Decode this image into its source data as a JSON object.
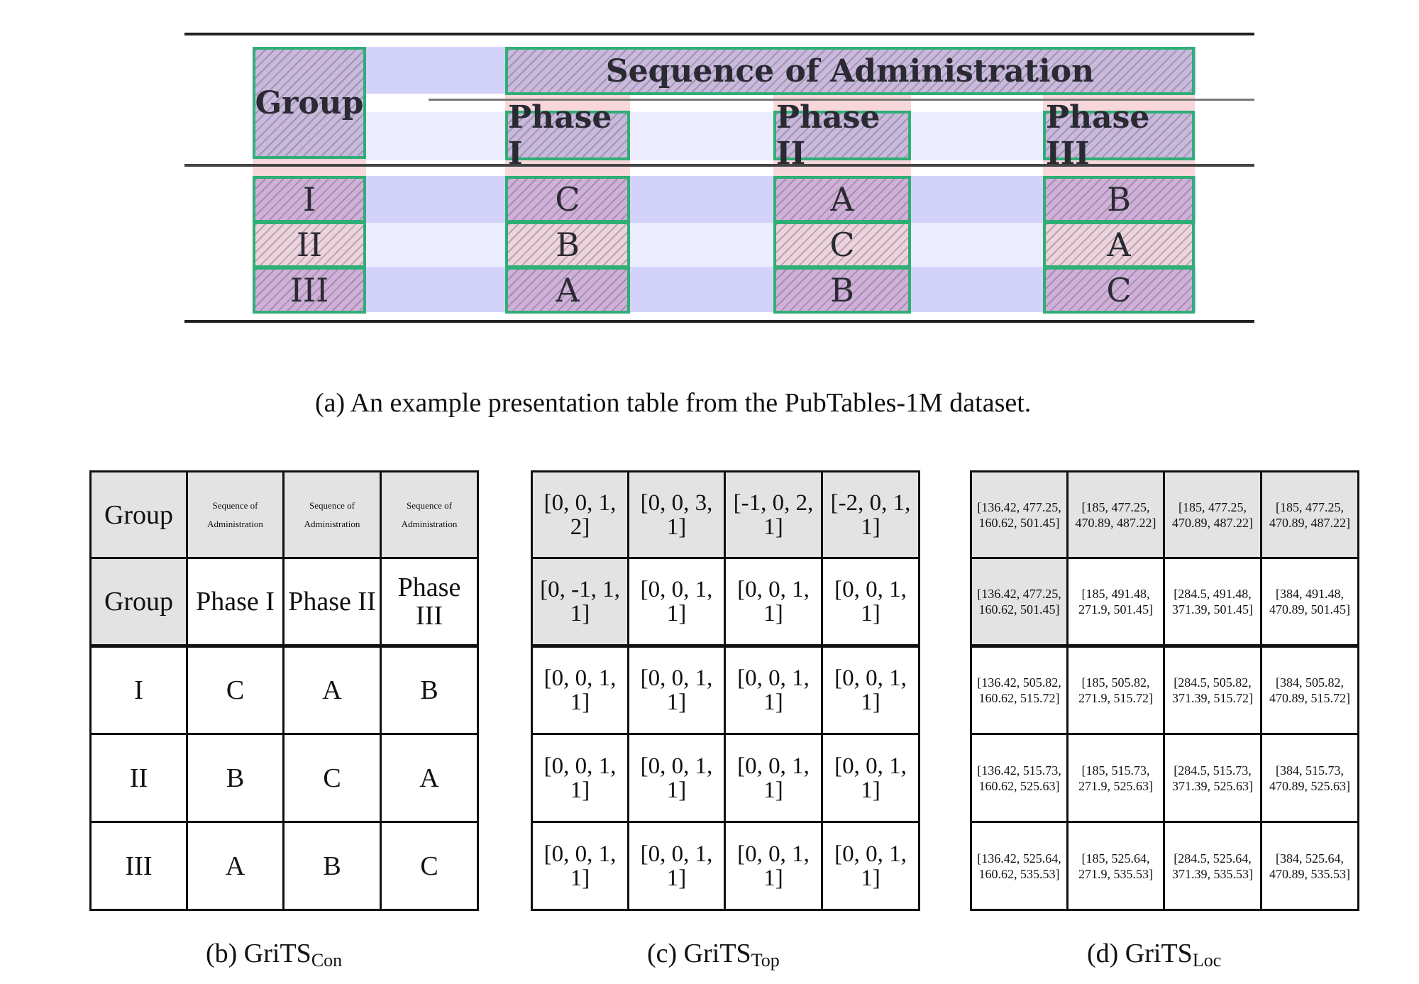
{
  "figure_a": {
    "header_group": "Group",
    "header_span": "Sequence of Administration",
    "phases": [
      "Phase I",
      "Phase II",
      "Phase III"
    ],
    "rows": [
      {
        "group": "I",
        "cells": [
          "C",
          "A",
          "B"
        ]
      },
      {
        "group": "II",
        "cells": [
          "B",
          "C",
          "A"
        ]
      },
      {
        "group": "III",
        "cells": [
          "A",
          "B",
          "C"
        ]
      }
    ],
    "colors": {
      "box_border": "#2fae76",
      "row_band": "#d3d3fa",
      "col_band": "#f5c6cc"
    }
  },
  "caption_a": "(a) An example presentation table from the PubTables-1M dataset.",
  "grid_con": {
    "rows": [
      [
        "Group",
        "Sequence of Administration",
        "Sequence of Administration",
        "Sequence of Administration"
      ],
      [
        "Group",
        "Phase I",
        "Phase II",
        "Phase III"
      ],
      [
        "I",
        "C",
        "A",
        "B"
      ],
      [
        "II",
        "B",
        "C",
        "A"
      ],
      [
        "III",
        "A",
        "B",
        "C"
      ]
    ]
  },
  "grid_top": {
    "rows": [
      [
        "[0, 0, 1, 2]",
        "[0, 0, 3, 1]",
        "[-1, 0, 2, 1]",
        "[-2, 0, 1, 1]"
      ],
      [
        "[0, -1, 1, 1]",
        "[0, 0, 1, 1]",
        "[0, 0, 1, 1]",
        "[0, 0, 1, 1]"
      ],
      [
        "[0, 0, 1, 1]",
        "[0, 0, 1, 1]",
        "[0, 0, 1, 1]",
        "[0, 0, 1, 1]"
      ],
      [
        "[0, 0, 1, 1]",
        "[0, 0, 1, 1]",
        "[0, 0, 1, 1]",
        "[0, 0, 1, 1]"
      ],
      [
        "[0, 0, 1, 1]",
        "[0, 0, 1, 1]",
        "[0, 0, 1, 1]",
        "[0, 0, 1, 1]"
      ]
    ]
  },
  "grid_loc": {
    "rows": [
      [
        "[136.42, 477.25, 160.62, 501.45]",
        "[185, 477.25, 470.89, 487.22]",
        "[185, 477.25, 470.89, 487.22]",
        "[185, 477.25, 470.89, 487.22]"
      ],
      [
        "[136.42, 477.25, 160.62, 501.45]",
        "[185, 491.48, 271.9, 501.45]",
        "[284.5, 491.48, 371.39, 501.45]",
        "[384, 491.48, 470.89, 501.45]"
      ],
      [
        "[136.42, 505.82, 160.62, 515.72]",
        "[185, 505.82, 271.9, 515.72]",
        "[284.5, 505.82, 371.39, 515.72]",
        "[384, 505.82, 470.89, 515.72]"
      ],
      [
        "[136.42, 515.73, 160.62, 525.63]",
        "[185, 515.73, 271.9, 525.63]",
        "[284.5, 515.73, 371.39, 525.63]",
        "[384, 515.73, 470.89, 525.63]"
      ],
      [
        "[136.42, 525.64, 160.62, 535.53]",
        "[185, 525.64, 271.9, 535.53]",
        "[284.5, 525.64, 371.39, 535.53]",
        "[384, 525.64, 470.89, 535.53]"
      ]
    ]
  },
  "captions": {
    "b": {
      "prefix": "(b) GriTS",
      "sub": "Con"
    },
    "c": {
      "prefix": "(c) GriTS",
      "sub": "Top"
    },
    "d": {
      "prefix": "(d) GriTS",
      "sub": "Loc"
    }
  }
}
